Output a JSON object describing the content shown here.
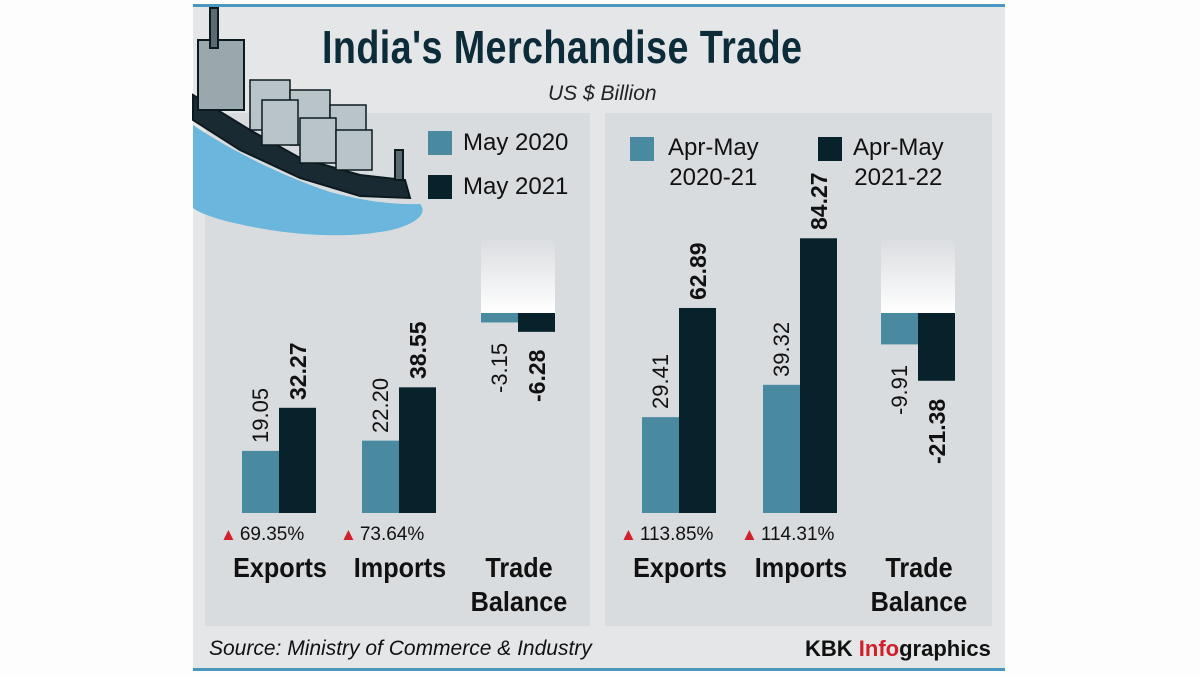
{
  "title": "India's Merchandise Trade",
  "subtitle": "US $ Billion",
  "source": "Source: Ministry of Commerce & Industry",
  "brand": {
    "part1": "KBK ",
    "accent": "Info",
    "part2": "graphics"
  },
  "colors": {
    "light": "#4a8aa0",
    "dark": "#07222b",
    "accent": "#d0202a"
  },
  "chart_data": [
    {
      "type": "bar",
      "legend": [
        "May 2020",
        "May 2021"
      ],
      "categories": [
        "Exports",
        "Imports",
        "Trade Balance"
      ],
      "series": [
        {
          "name": "May 2020",
          "values": [
            19.05,
            22.2,
            -3.15
          ],
          "labels": [
            "19.05",
            "22.20",
            "-3.15"
          ]
        },
        {
          "name": "May 2021",
          "values": [
            32.27,
            38.55,
            -6.28
          ],
          "labels": [
            "32.27",
            "38.55",
            "-6.28"
          ]
        }
      ],
      "growth": [
        "69.35%",
        "73.64%",
        ""
      ]
    },
    {
      "type": "bar",
      "legend": [
        "Apr-May\n2020-21",
        "Apr-May\n2021-22"
      ],
      "categories": [
        "Exports",
        "Imports",
        "Trade Balance"
      ],
      "series": [
        {
          "name": "Apr-May 2020-21",
          "values": [
            29.41,
            39.32,
            -9.91
          ],
          "labels": [
            "29.41",
            "39.32",
            "-9.91"
          ]
        },
        {
          "name": "Apr-May 2021-22",
          "values": [
            62.89,
            84.27,
            -21.38
          ],
          "labels": [
            "62.89",
            "84.27",
            "-21.38"
          ]
        }
      ],
      "growth": [
        "113.85%",
        "114.31%",
        ""
      ]
    }
  ]
}
